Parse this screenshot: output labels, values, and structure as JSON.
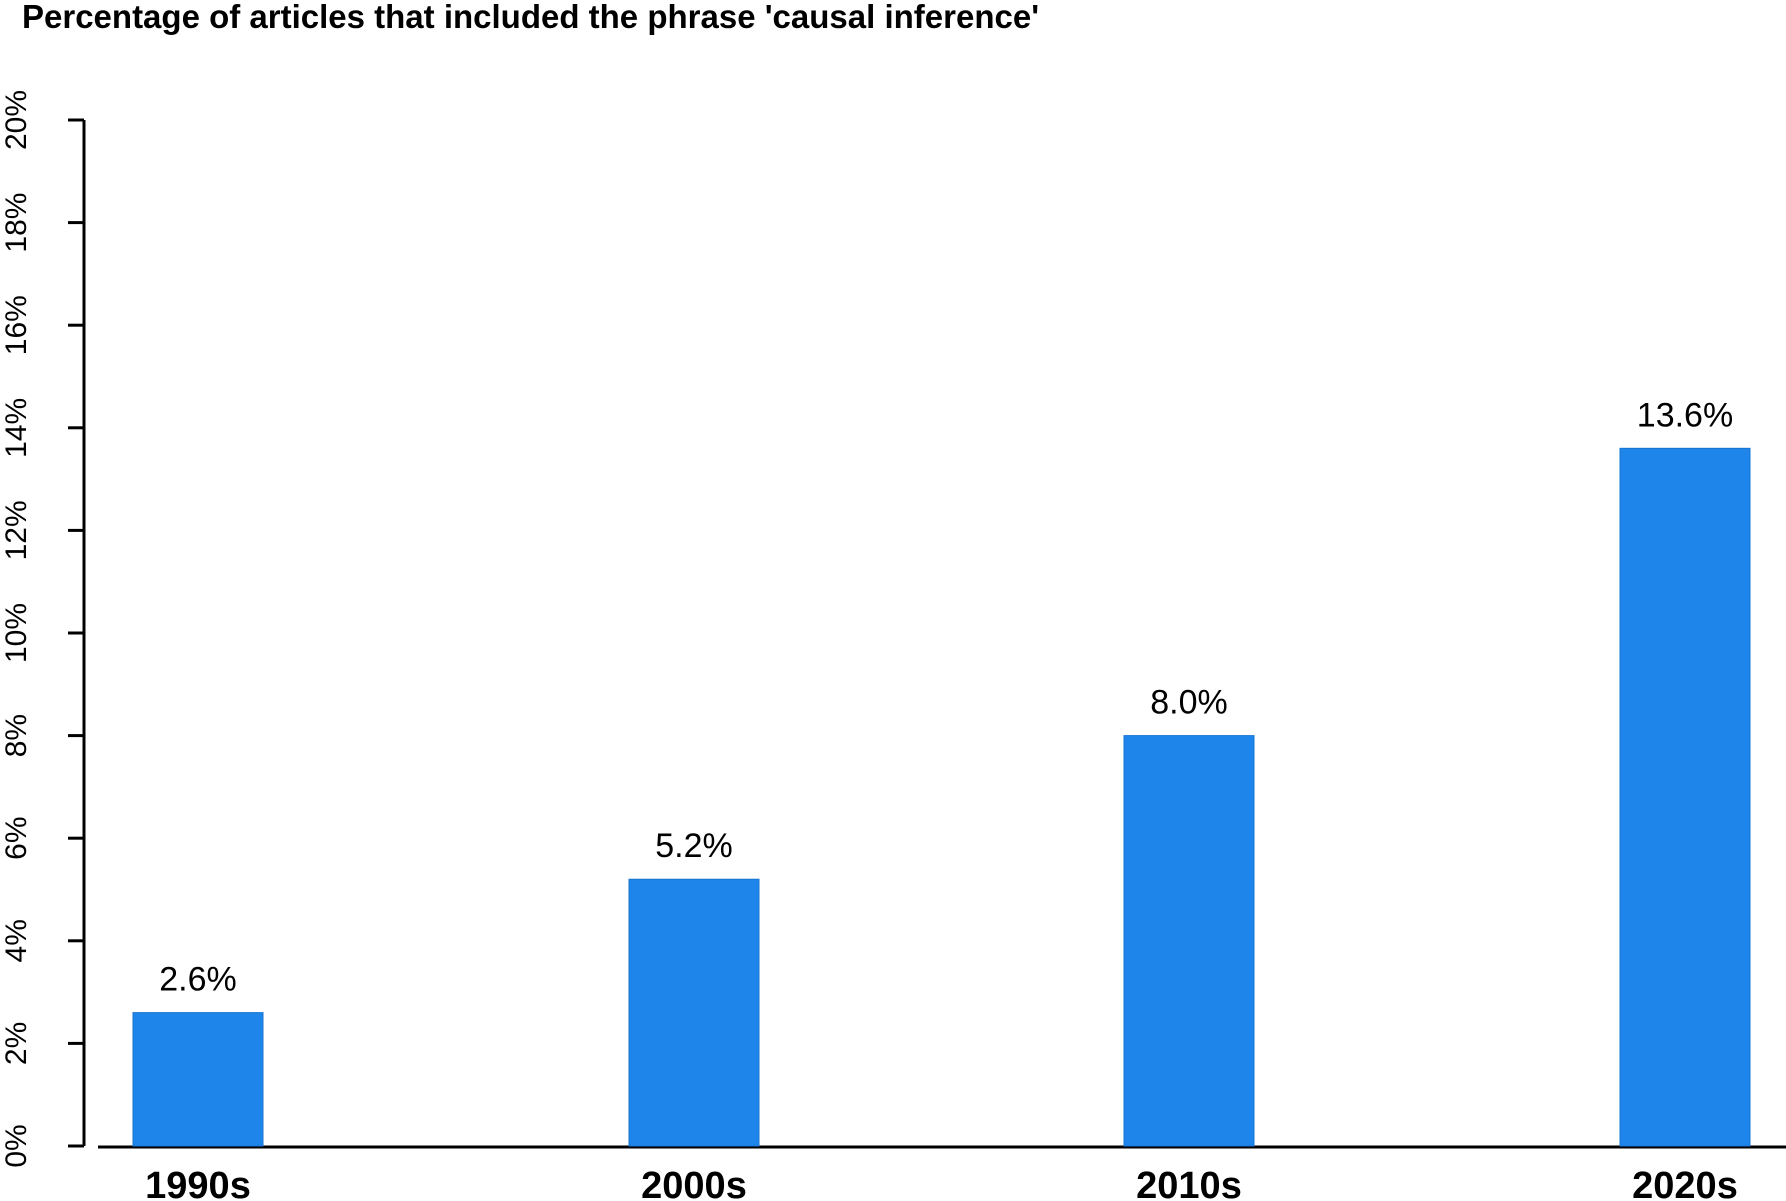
{
  "chart_data": {
    "type": "bar",
    "title": "Percentage of articles that included the phrase 'causal inference'",
    "xlabel": "",
    "ylabel": "",
    "categories": [
      "1990s",
      "2000s",
      "2010s",
      "2020s"
    ],
    "values": [
      2.6,
      5.2,
      8.0,
      13.6
    ],
    "data_labels": [
      "2.6%",
      "5.2%",
      "8.0%",
      "13.6%"
    ],
    "ylim": [
      0,
      20
    ],
    "y_ticks": [
      0,
      2,
      4,
      6,
      8,
      10,
      12,
      14,
      16,
      18,
      20
    ],
    "y_tick_labels": [
      "0%",
      "2%",
      "4%",
      "6%",
      "8%",
      "10%",
      "12%",
      "14%",
      "16%",
      "18%",
      "20%"
    ],
    "bar_color": "#1e85eb",
    "grid": false,
    "legend": "none"
  }
}
